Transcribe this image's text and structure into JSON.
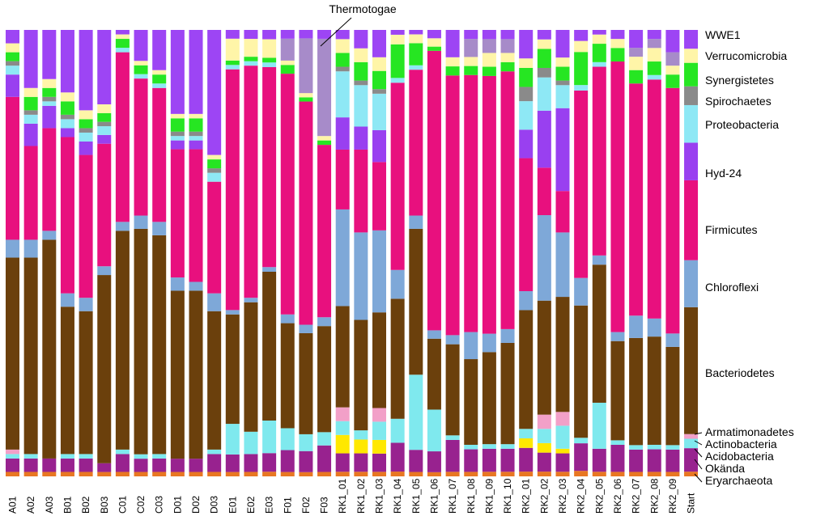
{
  "chart_data": {
    "type": "stacked-bar",
    "orientation": "vertical",
    "normalized": true,
    "y_unit": "fraction",
    "ylim": [
      0,
      1
    ],
    "grid": false,
    "legend_placement": "right",
    "title": "",
    "xlabel": "",
    "ylabel": "",
    "categories": [
      "A01",
      "A02",
      "A03",
      "B01",
      "B02",
      "B03",
      "C01",
      "C02",
      "C03",
      "D01",
      "D02",
      "D03",
      "E01",
      "E02",
      "E03",
      "F01",
      "F02",
      "F03",
      "RK1_01",
      "RK1_02",
      "RK1_03",
      "RK1_04",
      "RK1_05",
      "RK1_06",
      "RK1_07",
      "RK1_08",
      "RK1_09",
      "RK1_10",
      "RK2_01",
      "RK2_02",
      "RK2_03",
      "RK2_04",
      "RK2_05",
      "RK2_06",
      "RK2_07",
      "RK2_08",
      "RK2_09",
      "Start"
    ],
    "series": [
      {
        "name": "Eryarchaeota",
        "color": "#e87722",
        "values": [
          0.01,
          0.01,
          0.01,
          0.01,
          0.01,
          0.01,
          0.01,
          0.01,
          0.01,
          0.01,
          0.01,
          0.01,
          0.01,
          0.01,
          0.01,
          0.01,
          0.01,
          0.01,
          0.01,
          0.01,
          0.01,
          0.01,
          0.01,
          0.01,
          0.01,
          0.01,
          0.01,
          0.01,
          0.01,
          0.01,
          0.01,
          0.01,
          0.01,
          0.01,
          0.01,
          0.01,
          0.01,
          0.01
        ]
      },
      {
        "name": "Okända",
        "color": "#98228f",
        "values": [
          0.03,
          0.03,
          0.03,
          0.03,
          0.03,
          0.02,
          0.04,
          0.03,
          0.03,
          0.03,
          0.03,
          0.04,
          0.04,
          0.04,
          0.04,
          0.05,
          0.05,
          0.06,
          0.04,
          0.04,
          0.04,
          0.06,
          0.05,
          0.05,
          0.07,
          0.05,
          0.05,
          0.05,
          0.05,
          0.04,
          0.04,
          0.05,
          0.05,
          0.06,
          0.05,
          0.05,
          0.05,
          0.05
        ]
      },
      {
        "name": "Acidobacteria",
        "color": "#ffe800",
        "values": [
          0,
          0,
          0,
          0,
          0,
          0,
          0,
          0,
          0,
          0,
          0,
          0,
          0,
          0,
          0,
          0,
          0,
          0,
          0.04,
          0.03,
          0.03,
          0,
          0,
          0,
          0,
          0,
          0,
          0,
          0.02,
          0.02,
          0.01,
          0,
          0,
          0,
          0,
          0,
          0,
          0
        ]
      },
      {
        "name": "Actinobacteria",
        "color": "#7fe9ee",
        "values": [
          0.01,
          0.01,
          0,
          0.01,
          0.01,
          0,
          0.01,
          0.01,
          0.01,
          0,
          0,
          0.01,
          0.07,
          0.05,
          0.07,
          0.05,
          0.04,
          0.03,
          0.03,
          0.02,
          0.04,
          0.05,
          0.17,
          0.1,
          0.01,
          0.01,
          0.01,
          0.01,
          0.02,
          0.03,
          0.05,
          0.01,
          0.1,
          0.01,
          0.01,
          0.01,
          0.01,
          0.02
        ]
      },
      {
        "name": "Armatimonadetes",
        "color": "#f2a0c8",
        "values": [
          0.01,
          0,
          0,
          0,
          0,
          0,
          0,
          0,
          0,
          0,
          0,
          0,
          0,
          0,
          0,
          0,
          0,
          0,
          0.03,
          0,
          0.03,
          0,
          0,
          0,
          0,
          0,
          0,
          0,
          0,
          0.03,
          0.03,
          0,
          0,
          0,
          0,
          0,
          0,
          0.01
        ]
      },
      {
        "name": "Bacteriodetes",
        "color": "#6b400c",
        "values": [
          0.43,
          0.44,
          0.49,
          0.33,
          0.32,
          0.43,
          0.49,
          0.51,
          0.49,
          0.38,
          0.38,
          0.31,
          0.25,
          0.29,
          0.32,
          0.24,
          0.24,
          0.24,
          0.22,
          0.24,
          0.21,
          0.25,
          0.33,
          0.17,
          0.2,
          0.19,
          0.2,
          0.22,
          0.25,
          0.24,
          0.25,
          0.24,
          0.3,
          0.22,
          0.24,
          0.24,
          0.22,
          0.27
        ]
      },
      {
        "name": "Chloroflexi",
        "color": "#7ea8d8",
        "values": [
          0.04,
          0.04,
          0.02,
          0.03,
          0.03,
          0.02,
          0.02,
          0.03,
          0.03,
          0.03,
          0.02,
          0.04,
          0.01,
          0.01,
          0.01,
          0.02,
          0.02,
          0.02,
          0.21,
          0.19,
          0.18,
          0.06,
          0.03,
          0.02,
          0.02,
          0.06,
          0.04,
          0.03,
          0.04,
          0.18,
          0.14,
          0.05,
          0.02,
          0.02,
          0.05,
          0.04,
          0.03,
          0.1
        ]
      },
      {
        "name": "Firmicutes",
        "color": "#e8107e",
        "values": [
          0.32,
          0.21,
          0.23,
          0.35,
          0.32,
          0.28,
          0.38,
          0.31,
          0.3,
          0.29,
          0.3,
          0.25,
          0.55,
          0.52,
          0.43,
          0.55,
          0.53,
          0.39,
          0.13,
          0.18,
          0.15,
          0.39,
          0.33,
          0.67,
          0.57,
          0.57,
          0.56,
          0.56,
          0.28,
          0.1,
          0.09,
          0.34,
          0.41,
          0.6,
          0.52,
          0.53,
          0.55,
          0.17
        ]
      },
      {
        "name": "Hyd-24",
        "color": "#9940f0",
        "values": [
          0.05,
          0.05,
          0.05,
          0.02,
          0.03,
          0.02,
          0,
          0,
          0,
          0.02,
          0.02,
          0,
          0,
          0,
          0,
          0,
          0,
          0,
          0.07,
          0.05,
          0.07,
          0,
          0,
          0,
          0,
          0,
          0,
          0,
          0.06,
          0.12,
          0.18,
          0,
          0,
          0,
          0,
          0,
          0,
          0.08
        ]
      },
      {
        "name": "Proteobacteria",
        "color": "#8ee8f5",
        "values": [
          0.02,
          0.02,
          0.01,
          0.02,
          0.02,
          0.02,
          0.01,
          0.01,
          0.01,
          0.01,
          0.01,
          0.02,
          0.01,
          0.01,
          0.01,
          0,
          0,
          0,
          0.1,
          0.09,
          0.08,
          0.01,
          0.01,
          0,
          0,
          0,
          0,
          0,
          0.06,
          0.07,
          0.05,
          0.01,
          0.01,
          0,
          0,
          0.01,
          0,
          0.08
        ]
      },
      {
        "name": "Spirochaetes",
        "color": "#8a8a8a",
        "values": [
          0.01,
          0.01,
          0.01,
          0.01,
          0.01,
          0.01,
          0,
          0,
          0,
          0.01,
          0.01,
          0.01,
          0,
          0,
          0,
          0,
          0,
          0,
          0.01,
          0.01,
          0.01,
          0,
          0,
          0,
          0,
          0,
          0,
          0,
          0.03,
          0.02,
          0.01,
          0,
          0,
          0,
          0,
          0,
          0,
          0.04
        ]
      },
      {
        "name": "Synergistetes",
        "color": "#26e622",
        "values": [
          0.02,
          0.03,
          0.02,
          0.03,
          0.02,
          0.02,
          0.02,
          0.02,
          0.02,
          0.03,
          0.03,
          0.02,
          0.01,
          0.01,
          0.01,
          0.02,
          0.01,
          0.01,
          0.03,
          0.04,
          0.04,
          0.07,
          0.05,
          0.01,
          0.02,
          0.02,
          0.02,
          0.02,
          0.04,
          0.04,
          0.03,
          0.06,
          0.04,
          0.03,
          0.03,
          0.03,
          0.03,
          0.05
        ]
      },
      {
        "name": "Verrucomicrobia",
        "color": "#fff5a8",
        "values": [
          0.02,
          0.02,
          0.02,
          0.02,
          0.02,
          0.02,
          0.01,
          0.01,
          0.01,
          0.01,
          0.01,
          0.01,
          0.05,
          0.04,
          0.04,
          0.01,
          0.01,
          0.01,
          0.03,
          0.03,
          0.03,
          0.02,
          0.02,
          0.02,
          0.02,
          0.02,
          0.03,
          0.02,
          0.02,
          0.02,
          0.02,
          0.02,
          0.02,
          0.02,
          0.03,
          0.03,
          0.02,
          0.03
        ]
      },
      {
        "name": "Thermotogae",
        "color": "#a78bc9",
        "values": [
          0,
          0,
          0,
          0,
          0,
          0,
          0,
          0,
          0,
          0,
          0,
          0,
          0,
          0,
          0,
          0.05,
          0.13,
          0.22,
          0,
          0,
          0,
          0,
          0,
          0,
          0,
          0.04,
          0.03,
          0.03,
          0,
          0,
          0,
          0,
          0,
          0,
          0.02,
          0.02,
          0.03,
          0
        ]
      },
      {
        "name": "WWE1",
        "color": "#9d45f4",
        "values": [
          0.03,
          0.13,
          0.11,
          0.14,
          0.18,
          0.17,
          0.01,
          0.07,
          0.09,
          0.19,
          0.19,
          0.28,
          0.02,
          0.02,
          0.02,
          0.02,
          0.02,
          0.02,
          0.02,
          0.04,
          0.06,
          0.01,
          0.01,
          0.02,
          0.06,
          0.02,
          0.02,
          0.02,
          0.06,
          0.02,
          0.06,
          0.02,
          0.01,
          0.02,
          0.04,
          0.02,
          0.05,
          0.04
        ]
      }
    ]
  },
  "legend": {
    "wwe1": "WWE1",
    "verrucomicrobia": "Verrucomicrobia",
    "synergistetes": "Synergistetes",
    "spirochaetes": "Spirochaetes",
    "proteobacteria": "Proteobacteria",
    "hyd24": "Hyd-24",
    "firmicutes": "Firmicutes",
    "chloroflexi": "Chloroflexi",
    "bacteriodetes": "Bacteriodetes",
    "armatimonadetes": "Armatimonadetes",
    "actinobacteria": "Actinobacteria",
    "acidobacteria": "Acidobacteria",
    "okanda": "Okända",
    "eryarchaeota": "Eryarchaeota"
  },
  "annotation": {
    "thermotogae": "Thermotogae"
  }
}
